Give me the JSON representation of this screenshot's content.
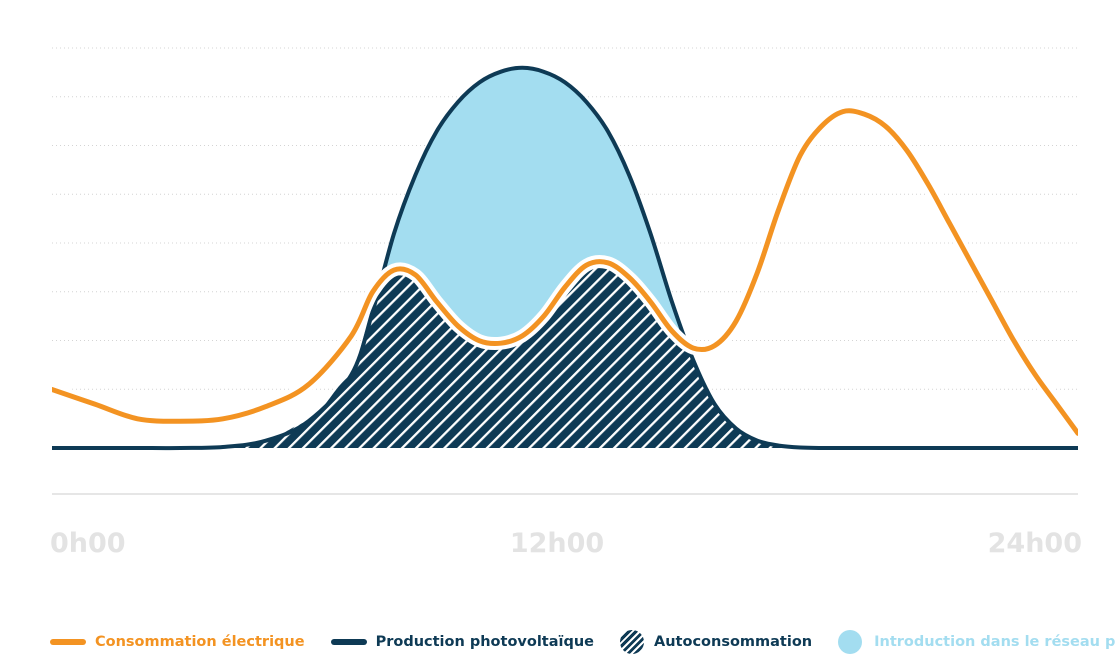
{
  "chart_data": {
    "type": "area",
    "x_unit": "hour",
    "xlim": [
      0,
      24
    ],
    "ylim": [
      0,
      8
    ],
    "grid": true,
    "legend_position": "bottom",
    "x_tick_labels": [
      {
        "x": 0,
        "label": "0h00"
      },
      {
        "x": 12,
        "label": "12h00"
      },
      {
        "x": 24,
        "label": "24h00"
      }
    ],
    "series": [
      {
        "name": "Consommation électrique",
        "type": "line",
        "color": "#f39322",
        "x": [
          0,
          1,
          2,
          3,
          4,
          5,
          6,
          7,
          7.5,
          8,
          8.5,
          9,
          9.5,
          10,
          10.5,
          11,
          11.5,
          12,
          12.5,
          13,
          13.5,
          14,
          14.5,
          15,
          15.5,
          16,
          16.5,
          17,
          17.5,
          18,
          18.5,
          19,
          19.5,
          20,
          20.5,
          21,
          21.5,
          22,
          22.5,
          23,
          23.5,
          24
        ],
        "values": [
          1.2,
          0.9,
          0.6,
          0.55,
          0.6,
          0.85,
          1.3,
          2.3,
          3.2,
          3.65,
          3.55,
          3.0,
          2.5,
          2.2,
          2.15,
          2.3,
          2.7,
          3.3,
          3.75,
          3.8,
          3.5,
          3.0,
          2.4,
          2.05,
          2.1,
          2.6,
          3.6,
          4.9,
          6.0,
          6.6,
          6.9,
          6.85,
          6.6,
          6.1,
          5.4,
          4.6,
          3.8,
          3.0,
          2.2,
          1.5,
          0.9,
          0.3
        ]
      },
      {
        "name": "Production photovoltaïque",
        "type": "line",
        "color": "#0e3a55",
        "x": [
          0,
          1,
          2,
          3,
          4,
          5,
          6,
          7,
          7.5,
          8,
          8.5,
          9,
          9.5,
          10,
          10.5,
          11,
          11.5,
          12,
          12.5,
          13,
          13.5,
          14,
          14.5,
          15,
          15.5,
          16,
          16.5,
          17,
          17.5,
          18,
          19,
          20,
          21,
          22,
          23,
          24
        ],
        "values": [
          0,
          0,
          0,
          0,
          0.02,
          0.15,
          0.55,
          1.5,
          2.8,
          4.4,
          5.6,
          6.5,
          7.1,
          7.5,
          7.72,
          7.8,
          7.72,
          7.5,
          7.1,
          6.5,
          5.6,
          4.4,
          3.0,
          1.8,
          0.9,
          0.4,
          0.15,
          0.05,
          0.01,
          0,
          0,
          0,
          0,
          0,
          0,
          0
        ]
      }
    ],
    "areas": [
      {
        "name": "Autoconsommation",
        "fill": "hatch",
        "color": "#0e3a55",
        "definition": "min(Consommation, Production)"
      },
      {
        "name": "Introduction dans le réseau public",
        "fill": "solid",
        "color": "#a3ddf0",
        "definition": "Production above Consommation"
      }
    ]
  },
  "legend": [
    {
      "label": "Consommation électrique",
      "color": "#f39322",
      "marker": "line"
    },
    {
      "label": "Production photovoltaïque",
      "color": "#0e3a55",
      "marker": "line"
    },
    {
      "label": "Autoconsommation",
      "color": "#0e3a55",
      "marker": "hatched-circle"
    },
    {
      "label": "Introduction dans le réseau public",
      "color": "#a3ddf0",
      "marker": "circle"
    }
  ]
}
